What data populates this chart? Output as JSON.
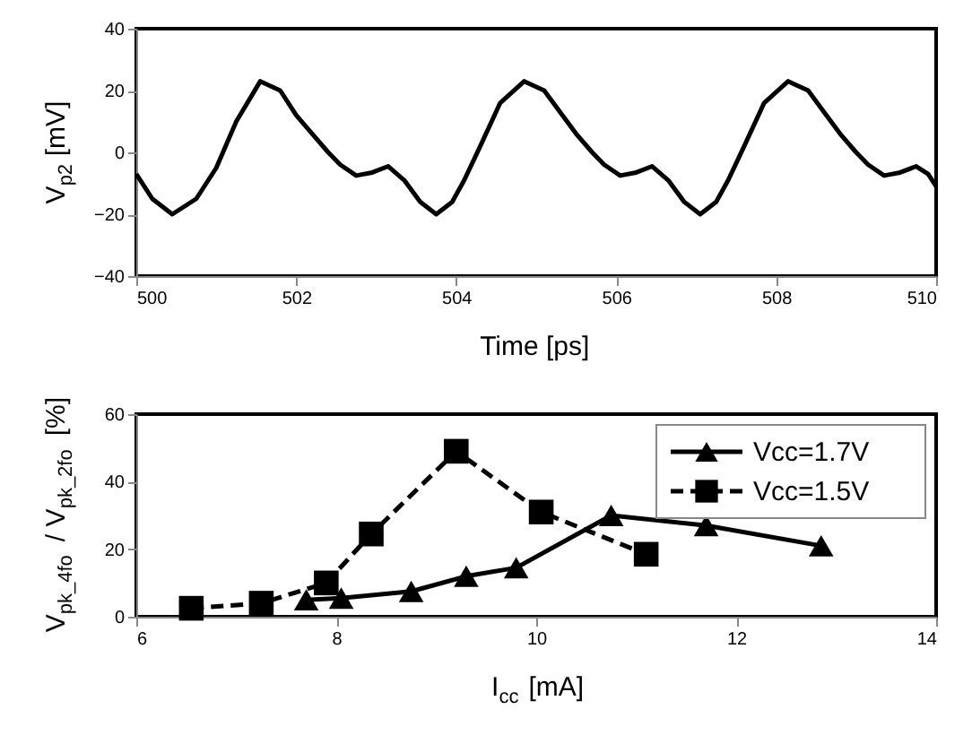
{
  "chart_data": [
    {
      "type": "line",
      "xlabel": "Time [ps]",
      "ylabel": "V$_{p2}$ [mV]",
      "xlim": [
        500,
        510
      ],
      "ylim": [
        -40,
        40
      ],
      "xticks": [
        500,
        502,
        504,
        506,
        508,
        510
      ],
      "yticks": [
        -40,
        -20,
        0,
        20,
        40
      ],
      "grid": false,
      "legend": false,
      "series": [
        {
          "color": "#000000",
          "line_style": "solid",
          "x": [
            500,
            500.2,
            500.45,
            500.75,
            501,
            501.25,
            501.55,
            501.8,
            502,
            502.2,
            502.4,
            502.55,
            502.75,
            502.95,
            503.15,
            503.35,
            503.55,
            503.75,
            503.95,
            504.1,
            504.3,
            504.55,
            504.85,
            505.1,
            505.3,
            505.5,
            505.7,
            505.85,
            506.05,
            506.25,
            506.45,
            506.65,
            506.85,
            507.05,
            507.25,
            507.4,
            507.6,
            507.85,
            508.15,
            508.4,
            508.6,
            508.8,
            509,
            509.15,
            509.35,
            509.55,
            509.75,
            509.9,
            510
          ],
          "values": [
            -7,
            -15,
            -20,
            -15,
            -5,
            10,
            23,
            20,
            12,
            6,
            0,
            -4,
            -7.5,
            -6.5,
            -4.5,
            -9,
            -16,
            -20,
            -16,
            -9,
            2,
            16,
            23,
            20,
            13,
            6,
            0,
            -4,
            -7.5,
            -6.5,
            -4.5,
            -9,
            -16,
            -20,
            -16,
            -9,
            2,
            16,
            23,
            20,
            13,
            6,
            0,
            -4,
            -7.5,
            -6.5,
            -4.5,
            -7,
            -11
          ]
        }
      ]
    },
    {
      "type": "line",
      "xlabel": "I$_{cc}$ [mA]",
      "ylabel": "V$_{pk_4fo}$ / V$_{pk_2fo}$ [%]",
      "xlim": [
        6,
        14
      ],
      "ylim": [
        0,
        60
      ],
      "xticks": [
        6,
        8,
        10,
        12,
        14
      ],
      "yticks": [
        0,
        20,
        40,
        60
      ],
      "grid": false,
      "legend": "top right",
      "series": [
        {
          "name": "Vcc=1.7V",
          "color": "#000000",
          "marker": "triangle",
          "line_style": "solid",
          "x": [
            7.7,
            8.05,
            8.75,
            9.3,
            9.8,
            10.75,
            11.7,
            12.85
          ],
          "values": [
            5,
            5.5,
            7.5,
            12,
            14.5,
            30,
            27,
            21
          ]
        },
        {
          "name": "Vcc=1.5V",
          "color": "#000000",
          "marker": "square",
          "line_style": "dashed",
          "x": [
            6.55,
            7.25,
            7.9,
            8.35,
            9.2,
            10.05,
            11.1
          ],
          "values": [
            2.5,
            4,
            10,
            24.5,
            49,
            31,
            18.5
          ]
        }
      ]
    }
  ]
}
